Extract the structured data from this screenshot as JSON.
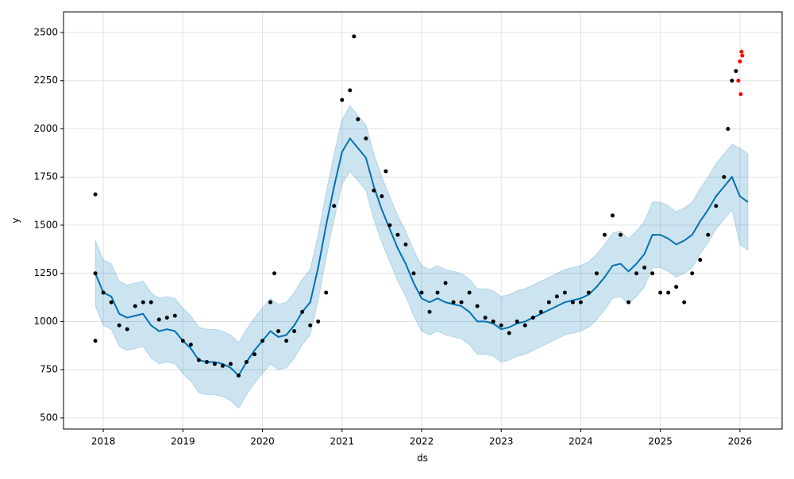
{
  "chart_data": {
    "type": "line",
    "x_label": "ds",
    "y_label": "y",
    "xlim": [
      2017.5,
      2026.53
    ],
    "ylim": [
      442,
      2607
    ],
    "xticks": [
      2018,
      2019,
      2020,
      2021,
      2022,
      2023,
      2024,
      2025,
      2026
    ],
    "yticks": [
      500,
      750,
      1000,
      1250,
      1500,
      1750,
      2000,
      2250,
      2500
    ],
    "grid": true,
    "series": [
      {
        "mark": "band",
        "color": "#0072b2",
        "x": [
          2017.9,
          2018.0,
          2018.1,
          2018.2,
          2018.3,
          2018.4,
          2018.5,
          2018.6,
          2018.7,
          2018.8,
          2018.9,
          2019.0,
          2019.1,
          2019.2,
          2019.3,
          2019.4,
          2019.5,
          2019.6,
          2019.7,
          2019.8,
          2019.9,
          2020.0,
          2020.1,
          2020.2,
          2020.3,
          2020.4,
          2020.5,
          2020.6,
          2020.7,
          2020.8,
          2020.9,
          2021.0,
          2021.1,
          2021.2,
          2021.3,
          2021.4,
          2021.5,
          2021.6,
          2021.7,
          2021.8,
          2021.9,
          2022.0,
          2022.1,
          2022.2,
          2022.3,
          2022.4,
          2022.5,
          2022.6,
          2022.7,
          2022.8,
          2022.9,
          2023.0,
          2023.1,
          2023.2,
          2023.3,
          2023.4,
          2023.5,
          2023.6,
          2023.7,
          2023.8,
          2023.9,
          2024.0,
          2024.1,
          2024.2,
          2024.3,
          2024.4,
          2024.5,
          2024.6,
          2024.7,
          2024.8,
          2024.9,
          2025.0,
          2025.1,
          2025.2,
          2025.3,
          2025.4,
          2025.5,
          2025.6,
          2025.7,
          2025.8,
          2025.9,
          2026.0,
          2026.1
        ],
        "upper": [
          1420,
          1320,
          1300,
          1210,
          1190,
          1200,
          1210,
          1150,
          1120,
          1130,
          1120,
          1070,
          1030,
          970,
          960,
          960,
          950,
          930,
          890,
          960,
          1020,
          1070,
          1120,
          1090,
          1100,
          1150,
          1220,
          1270,
          1450,
          1670,
          1870,
          2050,
          2120,
          2070,
          2020,
          1870,
          1750,
          1650,
          1550,
          1470,
          1370,
          1290,
          1270,
          1290,
          1270,
          1260,
          1250,
          1220,
          1170,
          1170,
          1160,
          1130,
          1140,
          1160,
          1170,
          1190,
          1210,
          1230,
          1250,
          1270,
          1280,
          1290,
          1310,
          1350,
          1400,
          1460,
          1470,
          1430,
          1470,
          1520,
          1620,
          1620,
          1600,
          1570,
          1590,
          1620,
          1690,
          1750,
          1820,
          1870,
          1920,
          1900,
          1870
        ],
        "lower": [
          1080,
          980,
          960,
          870,
          850,
          860,
          870,
          810,
          780,
          790,
          780,
          730,
          690,
          630,
          620,
          620,
          610,
          590,
          550,
          620,
          680,
          730,
          780,
          750,
          760,
          810,
          880,
          930,
          1110,
          1330,
          1530,
          1710,
          1780,
          1730,
          1680,
          1530,
          1410,
          1310,
          1210,
          1130,
          1030,
          950,
          930,
          950,
          930,
          920,
          910,
          880,
          830,
          830,
          820,
          790,
          800,
          820,
          830,
          850,
          870,
          890,
          910,
          930,
          940,
          950,
          970,
          1010,
          1060,
          1120,
          1130,
          1090,
          1130,
          1180,
          1280,
          1280,
          1260,
          1230,
          1250,
          1280,
          1350,
          1410,
          1480,
          1530,
          1580,
          1400,
          1370
        ]
      },
      {
        "mark": "line",
        "color": "#0072b2",
        "x": [
          2017.9,
          2018.0,
          2018.1,
          2018.2,
          2018.3,
          2018.4,
          2018.5,
          2018.6,
          2018.7,
          2018.8,
          2018.9,
          2019.0,
          2019.1,
          2019.2,
          2019.3,
          2019.4,
          2019.5,
          2019.6,
          2019.7,
          2019.8,
          2019.9,
          2020.0,
          2020.1,
          2020.2,
          2020.3,
          2020.4,
          2020.5,
          2020.6,
          2020.7,
          2020.8,
          2020.9,
          2021.0,
          2021.1,
          2021.2,
          2021.3,
          2021.4,
          2021.5,
          2021.6,
          2021.7,
          2021.8,
          2021.9,
          2022.0,
          2022.1,
          2022.2,
          2022.3,
          2022.4,
          2022.5,
          2022.6,
          2022.7,
          2022.8,
          2022.9,
          2023.0,
          2023.1,
          2023.2,
          2023.3,
          2023.4,
          2023.5,
          2023.6,
          2023.7,
          2023.8,
          2023.9,
          2024.0,
          2024.1,
          2024.2,
          2024.3,
          2024.4,
          2024.5,
          2024.6,
          2024.7,
          2024.8,
          2024.9,
          2025.0,
          2025.1,
          2025.2,
          2025.3,
          2025.4,
          2025.5,
          2025.6,
          2025.7,
          2025.8,
          2025.9,
          2026.0,
          2026.1
        ],
        "values": [
          1250,
          1150,
          1130,
          1040,
          1020,
          1030,
          1040,
          980,
          950,
          960,
          950,
          900,
          860,
          800,
          790,
          790,
          780,
          760,
          720,
          790,
          850,
          900,
          950,
          920,
          930,
          980,
          1050,
          1100,
          1280,
          1500,
          1700,
          1880,
          1950,
          1900,
          1850,
          1700,
          1580,
          1480,
          1380,
          1300,
          1200,
          1120,
          1100,
          1120,
          1100,
          1090,
          1080,
          1050,
          1000,
          1000,
          990,
          960,
          970,
          990,
          1000,
          1020,
          1040,
          1060,
          1080,
          1100,
          1110,
          1120,
          1140,
          1180,
          1230,
          1290,
          1300,
          1260,
          1300,
          1350,
          1450,
          1450,
          1430,
          1400,
          1420,
          1450,
          1520,
          1580,
          1650,
          1700,
          1750,
          1650,
          1620
        ]
      },
      {
        "mark": "scatter",
        "color": "#000000",
        "x": [
          2017.9,
          2017.9,
          2017.9,
          2018.0,
          2018.1,
          2018.2,
          2018.3,
          2018.4,
          2018.5,
          2018.6,
          2018.7,
          2018.8,
          2018.9,
          2019.0,
          2019.1,
          2019.2,
          2019.3,
          2019.4,
          2019.5,
          2019.6,
          2019.7,
          2019.8,
          2019.9,
          2020.0,
          2020.1,
          2020.15,
          2020.2,
          2020.3,
          2020.4,
          2020.5,
          2020.6,
          2020.7,
          2020.8,
          2020.9,
          2021.0,
          2021.1,
          2021.15,
          2021.2,
          2021.3,
          2021.4,
          2021.5,
          2021.55,
          2021.6,
          2021.7,
          2021.8,
          2021.9,
          2022.0,
          2022.1,
          2022.2,
          2022.3,
          2022.4,
          2022.5,
          2022.6,
          2022.7,
          2022.8,
          2022.9,
          2023.0,
          2023.1,
          2023.2,
          2023.3,
          2023.4,
          2023.5,
          2023.6,
          2023.7,
          2023.8,
          2023.9,
          2024.0,
          2024.1,
          2024.2,
          2024.3,
          2024.4,
          2024.5,
          2024.6,
          2024.7,
          2024.8,
          2024.9,
          2025.0,
          2025.1,
          2025.2,
          2025.3,
          2025.4,
          2025.5,
          2025.6,
          2025.7,
          2025.8,
          2025.85,
          2025.9,
          2025.95
        ],
        "values": [
          1250,
          1660,
          900,
          1150,
          1100,
          980,
          960,
          1080,
          1100,
          1100,
          1010,
          1020,
          1030,
          900,
          880,
          800,
          790,
          780,
          770,
          780,
          720,
          790,
          830,
          900,
          1100,
          1250,
          950,
          900,
          950,
          1050,
          980,
          1000,
          1150,
          1600,
          2150,
          2200,
          2480,
          2050,
          1950,
          1680,
          1650,
          1780,
          1500,
          1450,
          1400,
          1250,
          1150,
          1050,
          1150,
          1200,
          1100,
          1100,
          1150,
          1080,
          1020,
          1000,
          980,
          940,
          1000,
          980,
          1020,
          1050,
          1100,
          1130,
          1150,
          1100,
          1100,
          1150,
          1250,
          1450,
          1550,
          1450,
          1100,
          1250,
          1280,
          1250,
          1150,
          1150,
          1180,
          1100,
          1250,
          1320,
          1450,
          1600,
          1750,
          2000,
          2250,
          2300
        ]
      },
      {
        "mark": "scatter",
        "color": "#ff0000",
        "x": [
          2025.98,
          2026.0,
          2026.01,
          2026.02,
          2026.03
        ],
        "values": [
          2250,
          2350,
          2180,
          2400,
          2380
        ]
      }
    ]
  }
}
